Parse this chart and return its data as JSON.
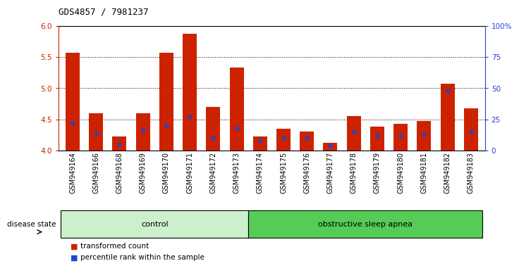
{
  "title": "GDS4857 / 7981237",
  "samples": [
    "GSM949164",
    "GSM949166",
    "GSM949168",
    "GSM949169",
    "GSM949170",
    "GSM949171",
    "GSM949172",
    "GSM949173",
    "GSM949174",
    "GSM949175",
    "GSM949176",
    "GSM949177",
    "GSM949178",
    "GSM949179",
    "GSM949180",
    "GSM949181",
    "GSM949182",
    "GSM949183"
  ],
  "transformed_count": [
    5.57,
    4.6,
    4.22,
    4.6,
    5.57,
    5.87,
    4.7,
    5.33,
    4.22,
    4.35,
    4.3,
    4.12,
    4.55,
    4.38,
    4.43,
    4.47,
    5.07,
    4.68
  ],
  "percentile_rank": [
    22,
    14,
    5,
    16,
    20,
    27,
    10,
    18,
    8,
    10,
    10,
    4,
    15,
    12,
    12,
    13,
    48,
    15
  ],
  "n_control": 8,
  "group_labels": [
    "control",
    "obstructive sleep apnea"
  ],
  "ctrl_color": "#ccf0cc",
  "osa_color": "#55cc55",
  "bar_color": "#cc2200",
  "marker_color": "#2244cc",
  "ylim_left": [
    4.0,
    6.0
  ],
  "ylim_right": [
    0,
    100
  ],
  "yticks_left": [
    4.0,
    4.5,
    5.0,
    5.5,
    6.0
  ],
  "yticks_right": [
    0,
    25,
    50,
    75,
    100
  ],
  "grid_values": [
    4.5,
    5.0,
    5.5
  ],
  "background_color": "#ffffff",
  "legend_items": [
    "transformed count",
    "percentile rank within the sample"
  ]
}
